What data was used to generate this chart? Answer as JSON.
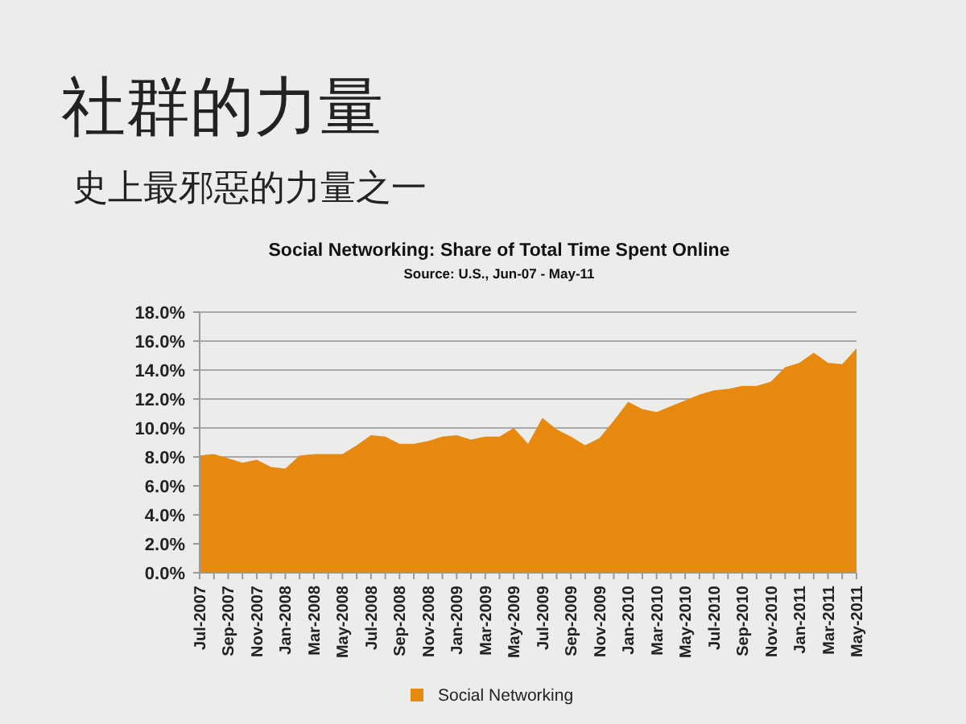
{
  "chart_data": {
    "type": "area",
    "title": "社群的力量",
    "subtitle": "史上最邪惡的力量之一",
    "annotations": [
      "Social Networking: Share of Total Time Spent Online",
      "Source: U.S., Jun-07 - May-11"
    ],
    "categories": [
      "Jul-2007",
      null,
      "Sep-2007",
      null,
      "Nov-2007",
      null,
      "Jan-2008",
      null,
      "Mar-2008",
      null,
      "May-2008",
      null,
      "Jul-2008",
      null,
      "Sep-2008",
      null,
      "Nov-2008",
      null,
      "Jan-2009",
      null,
      "Mar-2009",
      null,
      "May-2009",
      null,
      "Jul-2009",
      null,
      "Sep-2009",
      null,
      "Nov-2009",
      null,
      "Jan-2010",
      null,
      "Mar-2010",
      null,
      "May-2010",
      null,
      "Jul-2010",
      null,
      "Sep-2010",
      null,
      "Nov-2010",
      null,
      "Jan-2011",
      null,
      "Mar-2011",
      null,
      "May-2011"
    ],
    "series": [
      {
        "name": "Social Networking",
        "color": "#e8890f",
        "values": [
          8.1,
          8.2,
          7.9,
          7.6,
          7.8,
          7.3,
          7.2,
          8.1,
          8.2,
          8.2,
          8.2,
          8.8,
          9.5,
          9.4,
          8.9,
          8.9,
          9.1,
          9.4,
          9.5,
          9.2,
          9.4,
          9.4,
          10.0,
          8.9,
          10.7,
          9.9,
          9.4,
          8.8,
          9.3,
          10.5,
          11.8,
          11.3,
          11.1,
          11.5,
          11.9,
          12.3,
          12.6,
          12.7,
          12.9,
          12.9,
          13.2,
          14.2,
          14.5,
          15.2,
          14.5,
          14.4,
          15.5
        ]
      }
    ],
    "ylim": [
      0,
      18
    ],
    "yticks": [
      {
        "value": 0,
        "label": "0.0%"
      },
      {
        "value": 2,
        "label": "2.0%"
      },
      {
        "value": 4,
        "label": "4.0%"
      },
      {
        "value": 6,
        "label": "6.0%"
      },
      {
        "value": 8,
        "label": "8.0%"
      },
      {
        "value": 10,
        "label": "10.0%"
      },
      {
        "value": 12,
        "label": "12.0%"
      },
      {
        "value": 14,
        "label": "14.0%"
      },
      {
        "value": 16,
        "label": "16.0%"
      },
      {
        "value": 18,
        "label": "18.0%"
      }
    ],
    "grid": "y",
    "legend": "bottom"
  }
}
